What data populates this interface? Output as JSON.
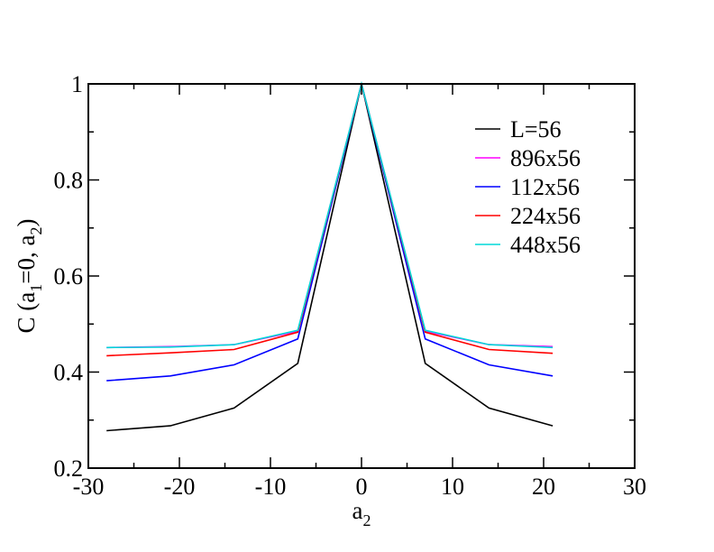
{
  "chart_data": {
    "type": "line",
    "title": "",
    "xlabel": "a",
    "xlabel_sub": "2",
    "ylabel_parts": [
      {
        "text": "C (a",
        "sub": false
      },
      {
        "text": "1",
        "sub": true
      },
      {
        "text": "=0, a",
        "sub": false
      },
      {
        "text": "2",
        "sub": true
      },
      {
        "text": ")",
        "sub": false
      }
    ],
    "xlim": [
      -30,
      30
    ],
    "ylim": [
      0.2,
      1.0
    ],
    "x_ticks": [
      {
        "value": -30,
        "label": "-30"
      },
      {
        "value": -20,
        "label": "-20"
      },
      {
        "value": -10,
        "label": "-10"
      },
      {
        "value": 0,
        "label": "0"
      },
      {
        "value": 10,
        "label": "10"
      },
      {
        "value": 20,
        "label": "20"
      },
      {
        "value": 30,
        "label": "30"
      }
    ],
    "y_ticks": [
      {
        "value": 0.2,
        "label": "0.2"
      },
      {
        "value": 0.4,
        "label": "0.4"
      },
      {
        "value": 0.6,
        "label": "0.6"
      },
      {
        "value": 0.8,
        "label": "0.8"
      },
      {
        "value": 1.0,
        "label": "1"
      }
    ],
    "x_minor_step": 5,
    "y_minor_step": 0.1,
    "grid": false,
    "legend_position": "top-right",
    "x": [
      -28,
      -21,
      -14,
      -7,
      0,
      7,
      14,
      21
    ],
    "series": [
      {
        "name": "L=56",
        "color": "#000000",
        "values": [
          0.278,
          0.288,
          0.325,
          0.418,
          1.0,
          0.418,
          0.325,
          0.288
        ]
      },
      {
        "name": "896x56",
        "color": "#ff00ff",
        "values": [
          0.451,
          0.453,
          0.457,
          0.485,
          1.0,
          0.485,
          0.457,
          0.453
        ]
      },
      {
        "name": "112x56",
        "color": "#0000ff",
        "values": [
          0.382,
          0.392,
          0.415,
          0.469,
          1.0,
          0.469,
          0.415,
          0.392
        ]
      },
      {
        "name": "224x56",
        "color": "#ff0000",
        "values": [
          0.434,
          0.44,
          0.447,
          0.483,
          1.0,
          0.483,
          0.447,
          0.439
        ]
      },
      {
        "name": "448x56",
        "color": "#00d8d8",
        "values": [
          0.451,
          0.452,
          0.457,
          0.487,
          1.0,
          0.487,
          0.457,
          0.451
        ]
      }
    ]
  }
}
